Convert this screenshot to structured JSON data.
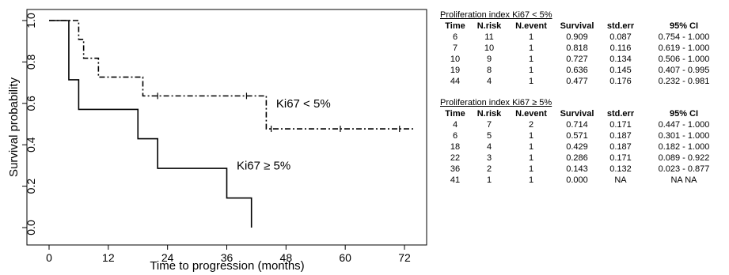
{
  "chart_data": {
    "type": "line",
    "xlabel": "Time to progression (months)",
    "ylabel": "Survival probability",
    "xlim": [
      0,
      76
    ],
    "ylim": [
      0,
      1
    ],
    "xticks": [
      0,
      12,
      24,
      36,
      48,
      60,
      72
    ],
    "yticks": [
      "0.0",
      "0.2",
      "0.4",
      "0.6",
      "0.8",
      "1.0"
    ],
    "grid": false,
    "series": [
      {
        "name": "Ki67 < 5%",
        "line_style": "dash-dot",
        "steps": [
          [
            0,
            1.0
          ],
          [
            6,
            0.909
          ],
          [
            7,
            0.818
          ],
          [
            10,
            0.727
          ],
          [
            19,
            0.636
          ],
          [
            44,
            0.477
          ],
          [
            74,
            0.477
          ]
        ],
        "censor_marks": [
          22,
          40,
          45,
          59,
          71
        ],
        "label_at": [
          46,
          0.6
        ]
      },
      {
        "name": "Ki67 ≥ 5%",
        "line_style": "solid",
        "steps": [
          [
            0,
            1.0
          ],
          [
            4,
            0.714
          ],
          [
            6,
            0.571
          ],
          [
            18,
            0.429
          ],
          [
            22,
            0.286
          ],
          [
            36,
            0.143
          ],
          [
            41,
            0.0
          ]
        ],
        "censor_marks": [],
        "label_at": [
          38,
          0.3
        ]
      }
    ]
  },
  "tables": [
    {
      "title": "Proliferation index Ki67 < 5%",
      "columns": [
        "Time",
        "N.risk",
        "N.event",
        "Survival",
        "std.err",
        "95% CI"
      ],
      "rows": [
        [
          "6",
          "11",
          "1",
          "0.909",
          "0.087",
          "0.754 - 1.000"
        ],
        [
          "7",
          "10",
          "1",
          "0.818",
          "0.116",
          "0.619 - 1.000"
        ],
        [
          "10",
          "9",
          "1",
          "0.727",
          "0.134",
          "0.506 - 1.000"
        ],
        [
          "19",
          "8",
          "1",
          "0.636",
          "0.145",
          "0.407 - 0.995"
        ],
        [
          "44",
          "4",
          "1",
          "0.477",
          "0.176",
          "0.232 - 0.981"
        ]
      ]
    },
    {
      "title": "Proliferation index Ki67 ≥ 5%",
      "columns": [
        "Time",
        "N.risk",
        "N.event",
        "Survival",
        "std.err",
        "95% CI"
      ],
      "rows": [
        [
          "4",
          "7",
          "2",
          "0.714",
          "0.171",
          "0.447 - 1.000"
        ],
        [
          "6",
          "5",
          "1",
          "0.571",
          "0.187",
          "0.301 - 1.000"
        ],
        [
          "18",
          "4",
          "1",
          "0.429",
          "0.187",
          "0.182 - 1.000"
        ],
        [
          "22",
          "3",
          "1",
          "0.286",
          "0.171",
          "0.089 - 0.922"
        ],
        [
          "36",
          "2",
          "1",
          "0.143",
          "0.132",
          "0.023 - 0.877"
        ],
        [
          "41",
          "1",
          "1",
          "0.000",
          "NA",
          "NA NA"
        ]
      ]
    }
  ]
}
